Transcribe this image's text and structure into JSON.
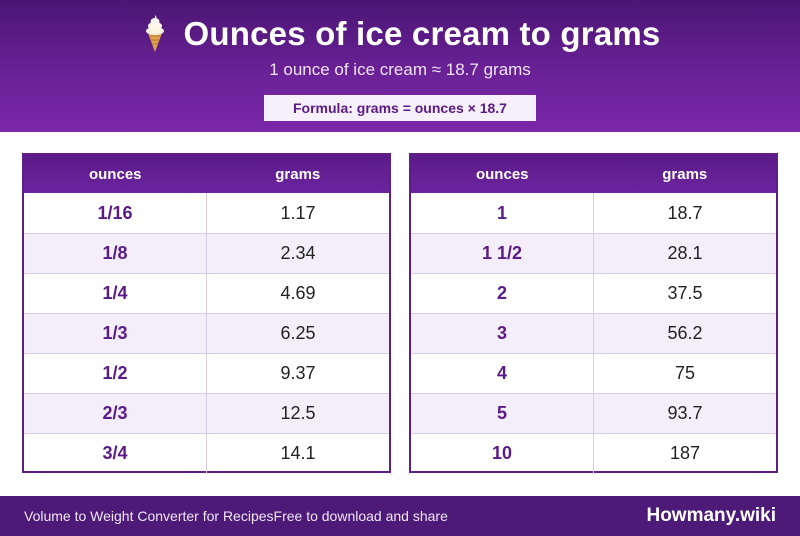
{
  "header": {
    "title": "Ounces of ice cream to grams",
    "icon": "ice-cream-cone-icon",
    "subtitle": "1 ounce of ice cream ≈ 18.7 grams",
    "formula": "Formula: grams = ounces × 18.7"
  },
  "columns": {
    "ounces": "ounces",
    "grams": "grams"
  },
  "left_table": [
    {
      "ounces": "1/16",
      "grams": "1.17"
    },
    {
      "ounces": "1/8",
      "grams": "2.34"
    },
    {
      "ounces": "1/4",
      "grams": "4.69"
    },
    {
      "ounces": "1/3",
      "grams": "6.25"
    },
    {
      "ounces": "1/2",
      "grams": "9.37"
    },
    {
      "ounces": "2/3",
      "grams": "12.5"
    },
    {
      "ounces": "3/4",
      "grams": "14.1"
    }
  ],
  "right_table": [
    {
      "ounces": "1",
      "grams": "18.7"
    },
    {
      "ounces": "1 1/2",
      "grams": "28.1"
    },
    {
      "ounces": "2",
      "grams": "37.5"
    },
    {
      "ounces": "3",
      "grams": "56.2"
    },
    {
      "ounces": "4",
      "grams": "75"
    },
    {
      "ounces": "5",
      "grams": "93.7"
    },
    {
      "ounces": "10",
      "grams": "187"
    }
  ],
  "footer": {
    "left": "Volume to Weight Converter for Recipes",
    "middle": "Free to download and share",
    "brand": "Howmany.wiki"
  },
  "colors": {
    "header_gradient_top": "#4a1673",
    "header_gradient_bottom": "#7a27a9",
    "accent_purple": "#5b1a86",
    "row_alt": "#f3eefa",
    "footer": "#4d1a78"
  }
}
